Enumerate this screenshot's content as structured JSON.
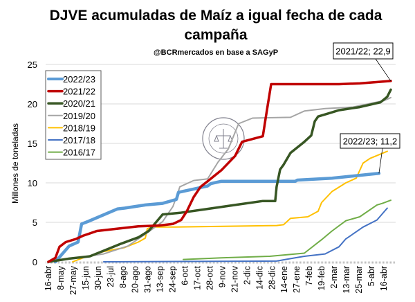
{
  "chart_data": {
    "type": "line",
    "title": "DJVE acumuladas de Maíz a igual fecha de cada campaña",
    "title_lines": [
      "DJVE acumuladas de Maíz a igual fecha de cada",
      "campaña"
    ],
    "subtitle": "@BCRmercados  en base a SAGyP",
    "ylabel": "Millones de toneladas",
    "xlabel": "",
    "ylim": [
      0,
      25
    ],
    "yticks": [
      0,
      5,
      10,
      15,
      20,
      25
    ],
    "xlim": [
      -0.2,
      28
    ],
    "x_unit": "category index of x tick labels",
    "categories": [
      "16-abr",
      "8-may",
      "27-may",
      "15-jun",
      "30-jun",
      "23-jul",
      "8-ago",
      "20-ago",
      "31-ago",
      "13-sep",
      "24-sep",
      "6-oct",
      "17-oct",
      "28-oct",
      "9-nov",
      "21-nov",
      "2-dic",
      "14-dic",
      "28-dic",
      "14-ene",
      "27-ene",
      "7-feb",
      "19-feb",
      "2-mar",
      "13-mar",
      "25-mar",
      "5-abr",
      "16-abr"
    ],
    "grid": true,
    "legend_position": "top-left",
    "series": [
      {
        "name": "2022/23",
        "color": "#5B9BD5",
        "width": 4.5,
        "points": [
          [
            0.56,
            0
          ],
          [
            1.67,
            2
          ],
          [
            2.39,
            2.5
          ],
          [
            2.67,
            4.8
          ],
          [
            3.17,
            5.1
          ],
          [
            5.57,
            6.7
          ],
          [
            6.12,
            6.8
          ],
          [
            7.8,
            7.2
          ],
          [
            9.19,
            7.4
          ],
          [
            10.3,
            7.9
          ],
          [
            10.47,
            8.8
          ],
          [
            12.81,
            9.6
          ],
          [
            13.08,
            9.9
          ],
          [
            13.92,
            10.2
          ],
          [
            19.88,
            10.2
          ],
          [
            20.04,
            10.35
          ],
          [
            22.83,
            10.6
          ],
          [
            26.61,
            11.2
          ]
        ]
      },
      {
        "name": "2021/22",
        "color": "#C00000",
        "width": 3.5,
        "points": [
          [
            0,
            0
          ],
          [
            0.56,
            0.5
          ],
          [
            0.89,
            1.9
          ],
          [
            1.39,
            2.5
          ],
          [
            2.23,
            2.9
          ],
          [
            2.78,
            3.3
          ],
          [
            3.9,
            3.9
          ],
          [
            5.57,
            4.2
          ],
          [
            7.24,
            4.5
          ],
          [
            8.91,
            4.6
          ],
          [
            10.02,
            4.8
          ],
          [
            10.69,
            5.3
          ],
          [
            11.14,
            6.4
          ],
          [
            11.69,
            8.2
          ],
          [
            12.25,
            9.5
          ],
          [
            12.81,
            10.2
          ],
          [
            13.92,
            11.6
          ],
          [
            15.03,
            13.4
          ],
          [
            15.59,
            15.2
          ],
          [
            17.26,
            15.9
          ],
          [
            17.54,
            18.7
          ],
          [
            17.93,
            22.5
          ],
          [
            23.39,
            22.5
          ],
          [
            25.06,
            22.6
          ],
          [
            27.56,
            22.9
          ]
        ]
      },
      {
        "name": "2020/21",
        "color": "#375623",
        "width": 3.5,
        "points": [
          [
            0,
            0
          ],
          [
            1.67,
            0.4
          ],
          [
            3.34,
            0.7
          ],
          [
            4.45,
            1.4
          ],
          [
            5.85,
            2.3
          ],
          [
            7.24,
            3.1
          ],
          [
            8.07,
            3.9
          ],
          [
            9.19,
            6
          ],
          [
            10.58,
            6.2
          ],
          [
            12.81,
            6.7
          ],
          [
            15.03,
            7.2
          ],
          [
            17.26,
            7.7
          ],
          [
            18.26,
            7.7
          ],
          [
            18.37,
            9.5
          ],
          [
            18.65,
            11.7
          ],
          [
            18.93,
            12.3
          ],
          [
            19.49,
            13.8
          ],
          [
            20.6,
            15.2
          ],
          [
            21.16,
            16
          ],
          [
            21.44,
            17.8
          ],
          [
            21.71,
            18.4
          ],
          [
            22.55,
            18.8
          ],
          [
            23.39,
            19.2
          ],
          [
            25.06,
            19.6
          ],
          [
            26.73,
            20.2
          ],
          [
            27.28,
            20.9
          ],
          [
            27.56,
            21.8
          ]
        ]
      },
      {
        "name": "2019/20",
        "color": "#A5A5A5",
        "width": 2,
        "points": [
          [
            0,
            0
          ],
          [
            2.23,
            0.5
          ],
          [
            4.45,
            1
          ],
          [
            6.4,
            2
          ],
          [
            7.8,
            3.5
          ],
          [
            9.19,
            5.1
          ],
          [
            10.02,
            7
          ],
          [
            10.3,
            8.2
          ],
          [
            10.58,
            9.5
          ],
          [
            11.69,
            10.3
          ],
          [
            12.81,
            10.5
          ],
          [
            13.64,
            12.6
          ],
          [
            14.48,
            14.3
          ],
          [
            15.31,
            17.5
          ],
          [
            16.43,
            18.2
          ],
          [
            19.49,
            18.3
          ],
          [
            20.6,
            19.1
          ],
          [
            22.27,
            19.4
          ],
          [
            24.5,
            19.6
          ],
          [
            27.0,
            20.4
          ],
          [
            27.56,
            20.8
          ]
        ]
      },
      {
        "name": "2018/19",
        "color": "#FFC000",
        "width": 2,
        "points": [
          [
            1.95,
            0
          ],
          [
            2.78,
            0.5
          ],
          [
            4.45,
            1.3
          ],
          [
            6.12,
            1.8
          ],
          [
            7.24,
            2.5
          ],
          [
            7.8,
            3
          ],
          [
            7.96,
            4.2
          ],
          [
            8.35,
            4.4
          ],
          [
            10.02,
            4.4
          ],
          [
            18.37,
            4.6
          ],
          [
            18.93,
            4.7
          ],
          [
            19.49,
            5.5
          ],
          [
            20.88,
            5.7
          ],
          [
            21.71,
            6.4
          ],
          [
            21.99,
            7.5
          ],
          [
            22.83,
            8.9
          ],
          [
            23.94,
            10
          ],
          [
            24.78,
            10.6
          ],
          [
            25.33,
            12.5
          ],
          [
            25.89,
            13.1
          ],
          [
            27.28,
            14
          ]
        ]
      },
      {
        "name": "2017/18",
        "color": "#4472C4",
        "width": 2,
        "points": [
          [
            4.45,
            0
          ],
          [
            18.37,
            0.1
          ],
          [
            19.49,
            0.4
          ],
          [
            20.6,
            0.7
          ],
          [
            22.27,
            1
          ],
          [
            23.39,
            1.9
          ],
          [
            23.94,
            2.9
          ],
          [
            24.5,
            3.5
          ],
          [
            25.33,
            4.4
          ],
          [
            26.45,
            5.3
          ],
          [
            27.28,
            6.8
          ]
        ]
      },
      {
        "name": "2016/17",
        "color": "#70AD47",
        "width": 2,
        "points": [
          [
            10.86,
            0.3
          ],
          [
            13.92,
            0.5
          ],
          [
            17.82,
            0.7
          ],
          [
            20.6,
            1.1
          ],
          [
            21.99,
            2.8
          ],
          [
            22.83,
            3.9
          ],
          [
            23.94,
            5.2
          ],
          [
            25.06,
            5.7
          ],
          [
            26.45,
            7.2
          ],
          [
            26.89,
            7.4
          ],
          [
            27.56,
            7.8
          ]
        ]
      }
    ],
    "annotations": [
      {
        "text": "2021/22; 22,9",
        "series": "2021/22",
        "x": 27.56,
        "y": 22.9
      },
      {
        "text": "2022/23; 11,2",
        "series": "2022/23",
        "x": 26.61,
        "y": 11.2
      }
    ]
  },
  "watermark": {
    "text": "BOLSA DE COMERCIO DE ROSARIO"
  }
}
